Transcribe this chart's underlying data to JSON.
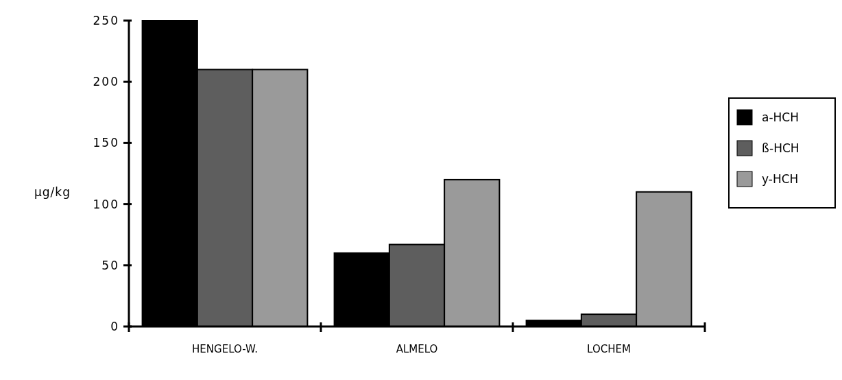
{
  "chart_data": {
    "type": "bar",
    "ylabel": "µg/kg",
    "categories": [
      "HENGELO-W.",
      "ALMELO",
      "LOCHEM"
    ],
    "series": [
      {
        "name": "a-HCH",
        "color": "#000000",
        "values": [
          250,
          60,
          5
        ]
      },
      {
        "name": "ß-HCH",
        "color": "#5e5e5e",
        "values": [
          210,
          67,
          10
        ]
      },
      {
        "name": "y-HCH",
        "color": "#9a9a9a",
        "values": [
          210,
          120,
          110
        ]
      }
    ],
    "ylim": [
      0,
      250
    ],
    "yticks": [
      0,
      50,
      100,
      150,
      200,
      250
    ],
    "grid": false,
    "legend": "right"
  }
}
